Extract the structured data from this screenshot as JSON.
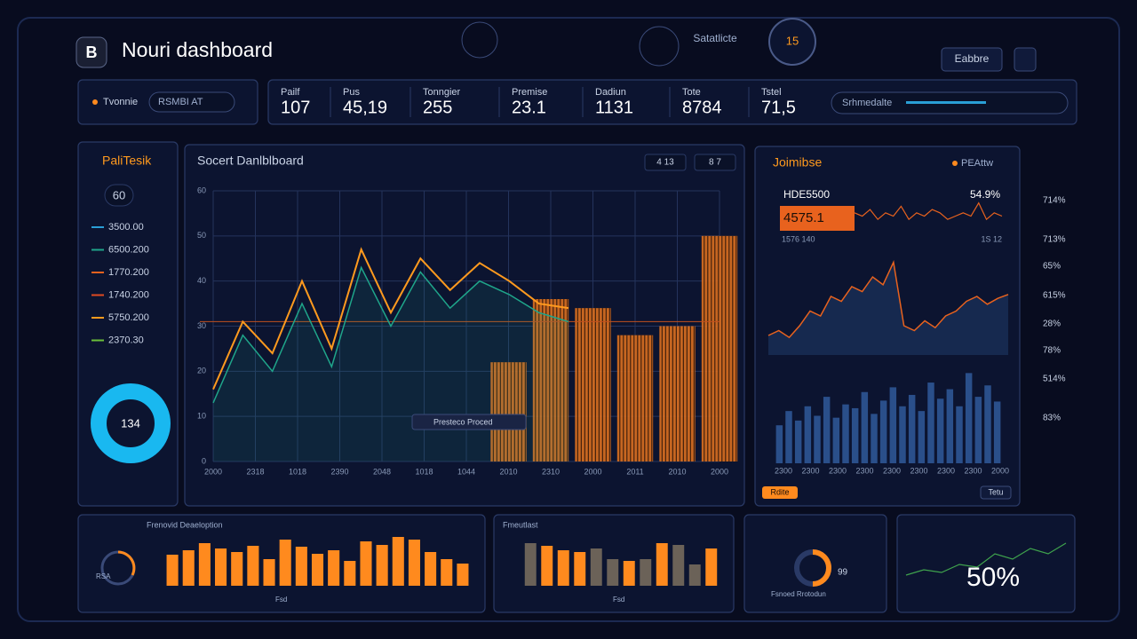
{
  "header": {
    "logo": "B",
    "title": "Nouri dashboard",
    "center_label": "Satatlicte",
    "badge": "15",
    "button": "Eabbre"
  },
  "filter": {
    "label": "Tvonnie",
    "select": "RSMBI AT"
  },
  "stats": [
    {
      "label": "Pailf",
      "value": "107"
    },
    {
      "label": "Pus",
      "value": "45,19"
    },
    {
      "label": "Tonngier",
      "value": "255"
    },
    {
      "label": "Premise",
      "value": "23.1"
    },
    {
      "label": "Dadiun",
      "value": "1131"
    },
    {
      "label": "Tote",
      "value": "8784"
    },
    {
      "label": "Tstel",
      "value": "71,5"
    }
  ],
  "search": "Srhmedalte",
  "left_panel": {
    "title": "PaliTesik",
    "count": "60",
    "legend": [
      {
        "label": "3500.00",
        "color": "#2a9fd6"
      },
      {
        "label": "6500.200",
        "color": "#1fa58a"
      },
      {
        "label": "1770.200",
        "color": "#e8621e"
      },
      {
        "label": "1740.200",
        "color": "#e04a20"
      },
      {
        "label": "5750.200",
        "color": "#ff9a1e"
      },
      {
        "label": "2370.30",
        "color": "#6bbf3a"
      }
    ],
    "donut_value": "134",
    "donut_color": "#19b8f0"
  },
  "main_chart": {
    "type": "line",
    "title": "Socert Danlblboard",
    "buttons": [
      "4 13",
      "8 7"
    ],
    "categories": [
      "2000",
      "2318",
      "1018",
      "2390",
      "2048",
      "1018",
      "1044",
      "2010",
      "2310",
      "2000",
      "2011",
      "2010",
      "2000"
    ],
    "series": [
      {
        "color": "#ff9a1e",
        "values": [
          16,
          31,
          24,
          40,
          25,
          47,
          33,
          45,
          38,
          44,
          40,
          35,
          34
        ]
      },
      {
        "color": "#1fa58a",
        "values": [
          13,
          28,
          20,
          35,
          21,
          43,
          30,
          42,
          34,
          40,
          37,
          33,
          31
        ]
      }
    ],
    "bars": {
      "color": "#e8741e",
      "values": [
        null,
        null,
        null,
        null,
        null,
        null,
        null,
        22,
        36,
        34,
        28,
        30,
        50
      ]
    },
    "reference_line": 31,
    "ylim": [
      0,
      60
    ],
    "yticks": [
      0,
      10,
      20,
      30,
      40,
      50,
      60
    ],
    "grid": true,
    "tooltip": "Presteco Proced"
  },
  "right_panel": {
    "title": "Joimibse",
    "tag": "PEAttw",
    "label": "HDE5500",
    "percent": "54.9%",
    "highlight": "4575.1",
    "sub_left": "1576 140",
    "sub_right": "1S 12",
    "line_small": {
      "color": "#e8621e",
      "ylim": [
        0,
        10
      ],
      "values": [
        6,
        5,
        7,
        4,
        6,
        5,
        8,
        4,
        6,
        5,
        7,
        6,
        4,
        5,
        6,
        5,
        9,
        4,
        6,
        5
      ]
    },
    "line_area": {
      "color": "#e8621e",
      "ylim": [
        0,
        100
      ],
      "values": [
        20,
        25,
        18,
        30,
        45,
        40,
        60,
        55,
        70,
        65,
        80,
        72,
        95,
        30,
        25,
        35,
        28,
        40,
        45,
        55,
        60,
        52,
        58,
        62
      ]
    },
    "bars": {
      "color": "#2a4f8a",
      "ylim": [
        0,
        100
      ],
      "values": [
        40,
        55,
        45,
        60,
        50,
        70,
        48,
        62,
        58,
        75,
        52,
        66,
        80,
        60,
        72,
        55,
        85,
        68,
        78,
        60,
        95,
        70,
        82,
        65
      ]
    },
    "categories": [
      "2300",
      "2300",
      "2300",
      "2300",
      "2300",
      "2300",
      "2300",
      "2300",
      "2000"
    ],
    "button": "Rdite",
    "button2": "Tetu"
  },
  "right_axis": [
    "714%",
    "713%",
    "65%",
    "615%",
    "28%",
    "78%",
    "514%",
    "83%"
  ],
  "bottom_panels": [
    {
      "title": "Frenovid Deaeloption",
      "gauge_label": "RSA",
      "footer": "Fsd",
      "bars": {
        "color": "#ff8a1e",
        "ylim": [
          0,
          60
        ],
        "values": [
          35,
          40,
          48,
          42,
          38,
          45,
          30,
          52,
          44,
          36,
          40,
          28,
          50,
          46,
          55,
          52,
          38,
          30,
          25
        ]
      }
    },
    {
      "title": "Fmeutlast",
      "footer": "Fsd",
      "bars": {
        "ylim": [
          0,
          60
        ],
        "values": [
          48,
          45,
          40,
          38,
          42,
          30,
          28,
          30,
          48,
          46,
          24,
          42
        ],
        "colors": [
          "#6b6258",
          "#ff8a1e",
          "#ff8a1e",
          "#ff8a1e",
          "#6b6258",
          "#6b6258",
          "#ff8a1e",
          "#6b6258",
          "#ff8a1e",
          "#6b6258",
          "#6b6258",
          "#ff8a1e"
        ]
      }
    },
    {
      "value": "99",
      "label": "Fsnoed Rrotodun"
    },
    {
      "value": "50%",
      "line": {
        "color": "#3fa34d",
        "ylim": [
          0,
          10
        ],
        "values": [
          2,
          3,
          2.5,
          4,
          3.5,
          6,
          5,
          7,
          6,
          8
        ]
      }
    }
  ]
}
